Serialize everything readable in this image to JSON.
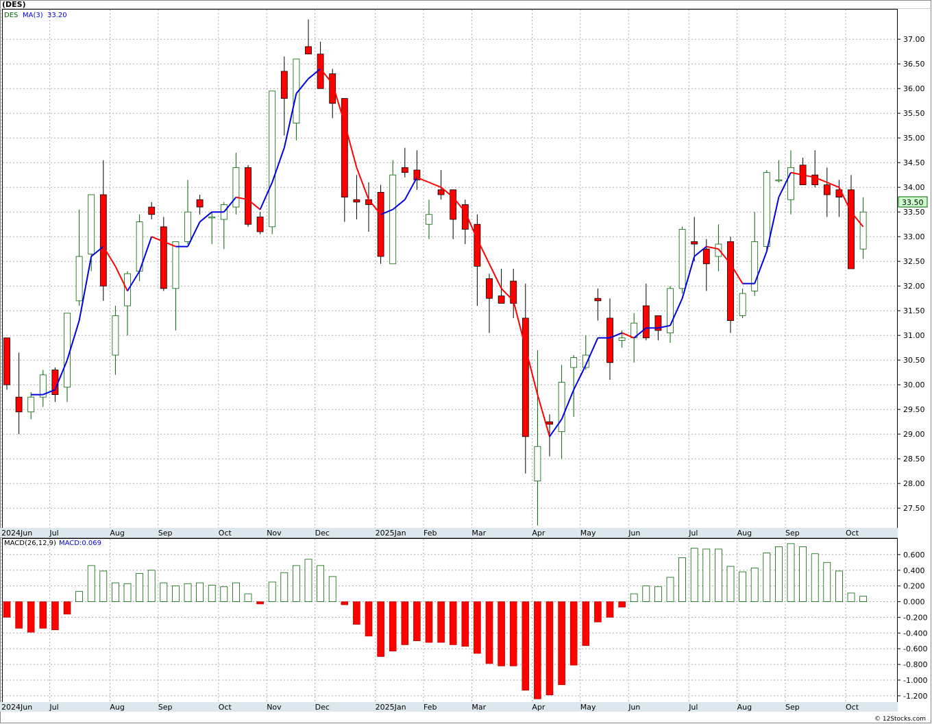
{
  "title": "(DES)",
  "footer": "© 12Stocks.com",
  "price_panel": {
    "legend_symbol": "DES",
    "legend_ma": "MA(3)",
    "legend_ma_value": "33.20",
    "last_price_label": "33.50",
    "y_ticks": [
      "37.00",
      "36.50",
      "36.00",
      "35.50",
      "35.00",
      "34.50",
      "34.00",
      "33.50",
      "33.00",
      "32.50",
      "32.00",
      "31.50",
      "31.00",
      "30.50",
      "30.00",
      "29.50",
      "29.00",
      "28.50",
      "28.00",
      "27.50"
    ]
  },
  "macd_panel": {
    "legend": "MACD(26,12,9)",
    "legend_value": "MACD:0.069",
    "y_ticks": [
      "0.600",
      "0.400",
      "0.200",
      "0.000",
      "-0.200",
      "-0.400",
      "-0.600",
      "-0.800",
      "-1.000",
      "-1.200"
    ]
  },
  "x_axis_labels": [
    {
      "label": "2024Jun",
      "week": 0
    },
    {
      "label": "Jul",
      "week": 4
    },
    {
      "label": "Aug",
      "week": 9
    },
    {
      "label": "Sep",
      "week": 13
    },
    {
      "label": "Oct",
      "week": 18
    },
    {
      "label": "Nov",
      "week": 22
    },
    {
      "label": "Dec",
      "week": 26
    },
    {
      "label": "2025Jan",
      "week": 31
    },
    {
      "label": "Feb",
      "week": 35
    },
    {
      "label": "Mar",
      "week": 39
    },
    {
      "label": "Apr",
      "week": 44
    },
    {
      "label": "May",
      "week": 48
    },
    {
      "label": "Jun",
      "week": 52
    },
    {
      "label": "Jul",
      "week": 57
    },
    {
      "label": "Aug",
      "week": 61
    },
    {
      "label": "Sep",
      "week": 65
    },
    {
      "label": "Oct",
      "week": 70
    }
  ],
  "colors": {
    "up_candle": "#006400",
    "down_candle": "#ff0000",
    "ma_up": "#0000dd",
    "ma_down": "#ff0000",
    "grid": "#aaaaaa",
    "axis_band": "#dde8ee",
    "last_price_bg": "#ccffcc"
  },
  "chart_data": [
    {
      "type": "candlestick",
      "title": "(DES)",
      "ylim": [
        27.1,
        37.6
      ],
      "x_unit": "week",
      "ohlc": [
        [
          30.95,
          30.95,
          29.9,
          30.0
        ],
        [
          29.75,
          30.65,
          29.0,
          29.45
        ],
        [
          29.45,
          29.85,
          29.3,
          29.75
        ],
        [
          29.75,
          30.3,
          29.55,
          30.2
        ],
        [
          30.3,
          30.35,
          29.65,
          29.8
        ],
        [
          29.95,
          31.45,
          29.65,
          31.45
        ],
        [
          31.7,
          33.55,
          31.6,
          32.6
        ],
        [
          32.65,
          33.85,
          32.3,
          33.85
        ],
        [
          33.85,
          34.55,
          31.7,
          32.0
        ],
        [
          30.6,
          31.6,
          30.2,
          31.4
        ],
        [
          31.6,
          32.3,
          31.0,
          32.25
        ],
        [
          32.3,
          33.45,
          32.1,
          33.3
        ],
        [
          33.6,
          33.7,
          33.35,
          33.45
        ],
        [
          33.2,
          33.4,
          31.9,
          31.95
        ],
        [
          31.95,
          32.9,
          31.1,
          32.9
        ],
        [
          32.9,
          34.15,
          32.85,
          33.5
        ],
        [
          33.75,
          33.85,
          33.45,
          33.6
        ],
        [
          33.4,
          33.5,
          32.85,
          33.4
        ],
        [
          33.35,
          33.7,
          32.75,
          33.65
        ],
        [
          33.6,
          34.7,
          33.45,
          34.4
        ],
        [
          34.4,
          34.45,
          33.2,
          33.25
        ],
        [
          33.4,
          33.5,
          33.05,
          33.1
        ],
        [
          33.2,
          35.95,
          33.05,
          35.95
        ],
        [
          36.35,
          36.65,
          35.05,
          35.8
        ],
        [
          35.3,
          36.6,
          34.95,
          36.6
        ],
        [
          36.85,
          37.4,
          36.7,
          36.7
        ],
        [
          36.7,
          36.95,
          36.0,
          36.0
        ],
        [
          36.3,
          36.4,
          35.4,
          35.7
        ],
        [
          35.8,
          35.8,
          33.3,
          33.8
        ],
        [
          33.75,
          34.25,
          33.35,
          33.7
        ],
        [
          33.75,
          34.1,
          33.1,
          33.65
        ],
        [
          33.9,
          34.05,
          32.45,
          32.6
        ],
        [
          32.45,
          34.55,
          32.45,
          34.25
        ],
        [
          34.4,
          34.8,
          34.2,
          34.3
        ],
        [
          34.35,
          34.75,
          33.95,
          34.15
        ],
        [
          33.25,
          33.75,
          32.95,
          33.45
        ],
        [
          33.95,
          34.35,
          33.75,
          33.85
        ],
        [
          33.95,
          33.95,
          32.95,
          33.35
        ],
        [
          33.65,
          33.75,
          32.85,
          33.15
        ],
        [
          33.25,
          33.45,
          31.6,
          32.4
        ],
        [
          32.15,
          32.25,
          31.05,
          31.75
        ],
        [
          31.8,
          32.35,
          31.65,
          31.65
        ],
        [
          32.1,
          32.35,
          31.35,
          31.65
        ],
        [
          31.35,
          32.05,
          28.2,
          28.95
        ],
        [
          28.05,
          30.7,
          27.15,
          28.75
        ],
        [
          29.25,
          29.4,
          28.55,
          29.2
        ],
        [
          29.05,
          30.4,
          28.5,
          30.05
        ],
        [
          30.35,
          30.6,
          29.35,
          30.55
        ],
        [
          30.35,
          31.0,
          30.3,
          30.6
        ],
        [
          31.75,
          31.95,
          31.3,
          31.7
        ],
        [
          31.35,
          31.75,
          30.1,
          30.45
        ],
        [
          30.9,
          31.1,
          30.75,
          30.95
        ],
        [
          30.95,
          31.45,
          30.45,
          31.25
        ],
        [
          31.6,
          32.05,
          30.9,
          30.95
        ],
        [
          31.4,
          31.4,
          30.9,
          31.1
        ],
        [
          31.05,
          32.0,
          30.85,
          31.95
        ],
        [
          31.95,
          33.2,
          31.85,
          33.15
        ],
        [
          32.9,
          33.4,
          32.5,
          32.85
        ],
        [
          32.75,
          32.95,
          31.9,
          32.45
        ],
        [
          32.6,
          33.25,
          32.3,
          32.85
        ],
        [
          32.9,
          33.0,
          31.05,
          31.3
        ],
        [
          31.4,
          31.95,
          31.35,
          31.85
        ],
        [
          31.9,
          33.5,
          31.8,
          32.9
        ],
        [
          32.8,
          34.35,
          32.7,
          34.3
        ],
        [
          34.15,
          34.55,
          34.1,
          34.15
        ],
        [
          33.75,
          34.75,
          33.45,
          34.4
        ],
        [
          34.45,
          34.6,
          34.05,
          34.05
        ],
        [
          34.25,
          34.75,
          34.0,
          34.05
        ],
        [
          34.05,
          34.4,
          33.4,
          33.85
        ],
        [
          33.95,
          34.15,
          33.4,
          33.8
        ],
        [
          33.95,
          34.25,
          32.35,
          32.35
        ],
        [
          32.75,
          33.8,
          32.55,
          33.5
        ]
      ],
      "ma3": [
        null,
        null,
        29.8,
        29.8,
        29.9,
        30.5,
        31.3,
        32.6,
        32.8,
        32.4,
        31.9,
        32.3,
        33.0,
        32.9,
        32.8,
        32.8,
        33.3,
        33.5,
        33.5,
        33.8,
        33.75,
        33.55,
        34.1,
        34.8,
        35.9,
        36.2,
        36.4,
        36.1,
        35.3,
        34.4,
        33.75,
        33.45,
        33.55,
        33.75,
        34.2,
        34.1,
        34.0,
        33.8,
        33.5,
        32.95,
        32.45,
        31.95,
        31.7,
        30.75,
        29.8,
        28.95,
        29.3,
        29.9,
        30.4,
        30.95,
        30.95,
        31.05,
        30.95,
        31.15,
        31.15,
        31.2,
        31.75,
        32.6,
        32.8,
        32.75,
        32.45,
        32.05,
        32.05,
        32.7,
        33.8,
        34.3,
        34.25,
        34.2,
        34.1,
        34.0,
        33.5,
        33.2
      ]
    },
    {
      "type": "bar",
      "title": "MACD(26,12,9)",
      "ylim": [
        -1.28,
        0.8
      ],
      "x_unit": "week",
      "values": [
        -0.2,
        -0.34,
        -0.39,
        -0.34,
        -0.36,
        -0.16,
        0.13,
        0.46,
        0.39,
        0.24,
        0.23,
        0.36,
        0.4,
        0.24,
        0.2,
        0.23,
        0.24,
        0.21,
        0.19,
        0.24,
        0.1,
        -0.03,
        0.25,
        0.37,
        0.46,
        0.54,
        0.46,
        0.32,
        -0.04,
        -0.29,
        -0.44,
        -0.7,
        -0.63,
        -0.55,
        -0.5,
        -0.52,
        -0.52,
        -0.55,
        -0.57,
        -0.66,
        -0.79,
        -0.82,
        -0.82,
        -1.13,
        -1.24,
        -1.19,
        -1.06,
        -0.81,
        -0.56,
        -0.26,
        -0.2,
        -0.07,
        0.1,
        0.2,
        0.19,
        0.31,
        0.56,
        0.68,
        0.67,
        0.67,
        0.45,
        0.38,
        0.43,
        0.62,
        0.7,
        0.74,
        0.7,
        0.61,
        0.5,
        0.39,
        0.11,
        0.069
      ]
    }
  ]
}
